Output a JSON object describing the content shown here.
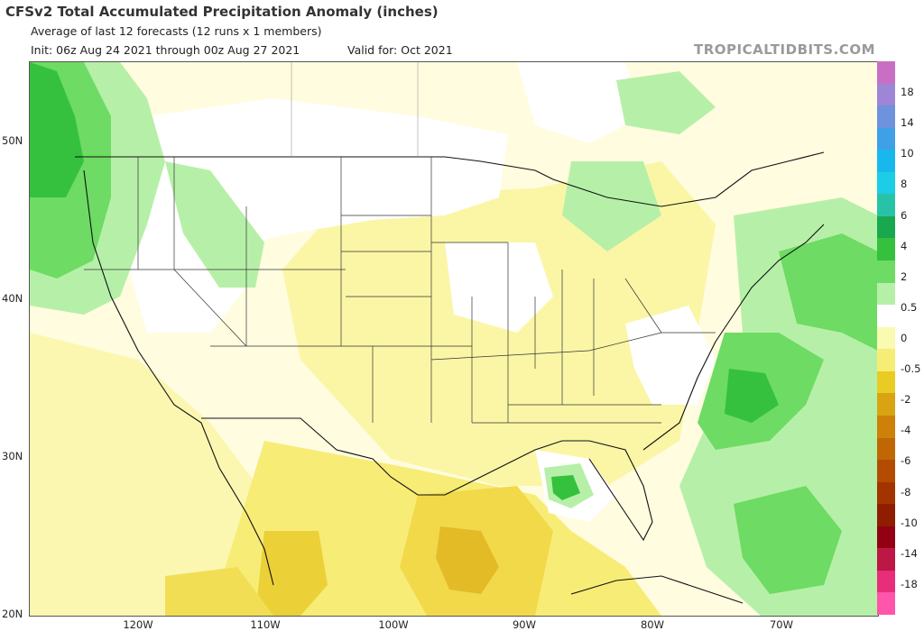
{
  "header": {
    "title": "CFSv2 Total Accumulated Precipitation Anomaly (inches)",
    "subtitle": "Average of last 12 forecasts (12 runs x 1 members)",
    "init": "Init: 06z Aug 24 2021 through 00z Aug 27 2021",
    "valid": "Valid for: Oct 2021",
    "brand": "TROPICALTIDBITS.COM"
  },
  "axes": {
    "lat_labels": [
      "50N",
      "40N",
      "30N",
      "20N"
    ],
    "lon_labels": [
      "120W",
      "110W",
      "100W",
      "90W",
      "80W",
      "70W"
    ]
  },
  "colorbar": {
    "labels": [
      "18",
      "14",
      "10",
      "8",
      "6",
      "4",
      "2",
      "0.5",
      "0",
      "-0.5",
      "-2",
      "-4",
      "-6",
      "-8",
      "-10",
      "-14",
      "-18"
    ],
    "colors": [
      "#c86fc4",
      "#9d86d6",
      "#6e92dc",
      "#3fa0e8",
      "#18b8ef",
      "#1ccde6",
      "#28c3a6",
      "#19a84f",
      "#35c13d",
      "#6edb64",
      "#b6f0a8",
      "#ffffff",
      "#fafab0",
      "#f5ed75",
      "#e8cc24",
      "#d9a411",
      "#cd8108",
      "#c06704",
      "#b34c00",
      "#a23400",
      "#8f1d00",
      "#930014",
      "#bd1746",
      "#e82d7a",
      "#ff55aa"
    ]
  }
}
